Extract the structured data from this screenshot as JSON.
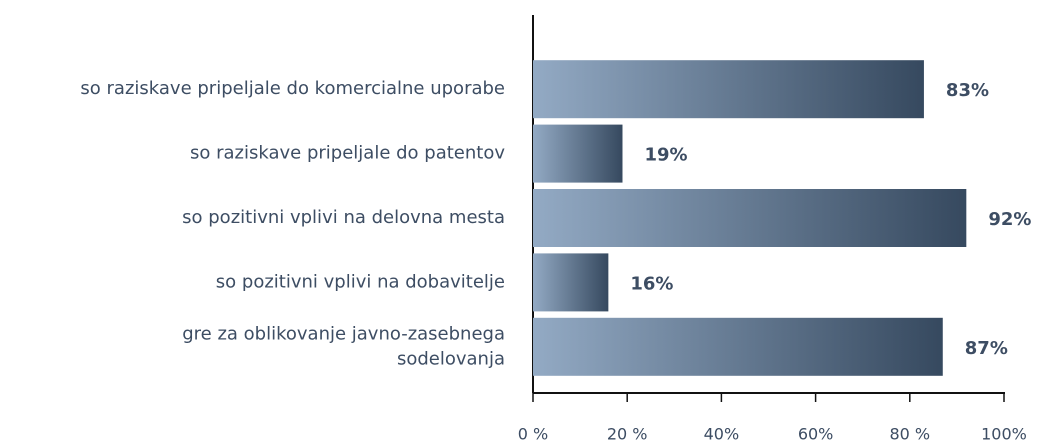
{
  "chart_data": {
    "type": "hbar",
    "categories": [
      "so raziskave pripeljale do komercialne uporabe",
      "so raziskave pripeljale do patentov",
      "so pozitivni vplivi na delovna mesta",
      "so pozitivni vplivi na dobavitelje",
      "gre za oblikovanje javno-zasebnega\nsodelovanja"
    ],
    "values": [
      83,
      19,
      92,
      16,
      87
    ],
    "value_labels": [
      "83%",
      "19%",
      "92%",
      "16%",
      "87%"
    ],
    "color": "#36495f",
    "gradient_from": "#93aac4",
    "xlim": [
      0,
      100
    ],
    "xticks": [
      {
        "value": 0,
        "label": "0 %"
      },
      {
        "value": 20,
        "label": "20 %"
      },
      {
        "value": 40,
        "label": "40%"
      },
      {
        "value": 60,
        "label": "60%"
      },
      {
        "value": 80,
        "label": "80 %"
      },
      {
        "value": 100,
        "label": "100%"
      }
    ]
  }
}
